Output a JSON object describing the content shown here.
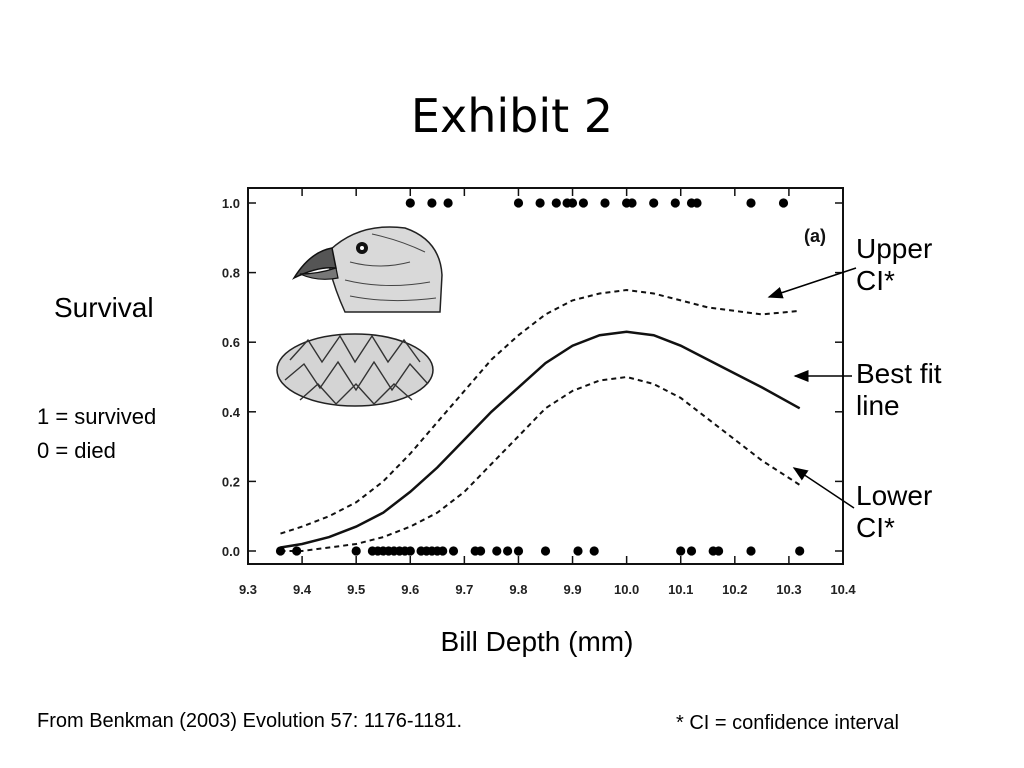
{
  "slide": {
    "title": "Exhibit 2",
    "survival_label": "Survival",
    "coding_survived": "1 = survived",
    "coding_died": "0 = died",
    "upper_ci": "Upper CI*",
    "best_fit": "Best fit line",
    "lower_ci": "Lower CI*",
    "source": "From Benkman (2003) Evolution 57: 1176-1181.",
    "ci_note": "* CI = confidence interval"
  },
  "chart_data": {
    "type": "scatter",
    "panel_label": "(a)",
    "xlabel": "Bill Depth (mm)",
    "ylabel": "",
    "xlim": [
      9.3,
      10.4
    ],
    "ylim": [
      0.0,
      1.0
    ],
    "x_ticks": [
      9.3,
      9.4,
      9.5,
      9.6,
      9.7,
      9.8,
      9.9,
      10.0,
      10.1,
      10.2,
      10.3,
      10.4
    ],
    "y_ticks": [
      0.0,
      0.2,
      0.4,
      0.6,
      0.8,
      1.0
    ],
    "grid": false,
    "series": [
      {
        "kind": "points",
        "x": [
          9.6,
          9.64,
          9.67,
          9.8,
          9.84,
          9.87,
          9.89,
          9.9,
          9.92,
          9.96,
          10.0,
          10.01,
          10.05,
          10.09,
          10.12,
          10.13,
          10.23,
          10.29
        ],
        "y": [
          1,
          1,
          1,
          1,
          1,
          1,
          1,
          1,
          1,
          1,
          1,
          1,
          1,
          1,
          1,
          1,
          1,
          1
        ]
      },
      {
        "kind": "points",
        "x": [
          9.36,
          9.39,
          9.5,
          9.53,
          9.54,
          9.55,
          9.56,
          9.57,
          9.58,
          9.59,
          9.6,
          9.62,
          9.63,
          9.64,
          9.65,
          9.66,
          9.68,
          9.72,
          9.73,
          9.76,
          9.78,
          9.8,
          9.85,
          9.91,
          9.94,
          10.1,
          10.12,
          10.16,
          10.17,
          10.23,
          10.32
        ],
        "y": [
          0,
          0,
          0,
          0,
          0,
          0,
          0,
          0,
          0,
          0,
          0,
          0,
          0,
          0,
          0,
          0,
          0,
          0,
          0,
          0,
          0,
          0,
          0,
          0,
          0,
          0,
          0,
          0,
          0,
          0,
          0
        ]
      },
      {
        "kind": "line",
        "style": "solid",
        "x": [
          9.36,
          9.4,
          9.45,
          9.5,
          9.55,
          9.6,
          9.65,
          9.7,
          9.75,
          9.8,
          9.85,
          9.9,
          9.95,
          10.0,
          10.05,
          10.1,
          10.15,
          10.2,
          10.25,
          10.32
        ],
        "y": [
          0.01,
          0.02,
          0.04,
          0.07,
          0.11,
          0.17,
          0.24,
          0.32,
          0.4,
          0.47,
          0.54,
          0.59,
          0.62,
          0.63,
          0.62,
          0.59,
          0.55,
          0.51,
          0.47,
          0.41
        ]
      },
      {
        "kind": "line",
        "style": "dashed",
        "x": [
          9.36,
          9.4,
          9.45,
          9.5,
          9.55,
          9.6,
          9.65,
          9.7,
          9.75,
          9.8,
          9.85,
          9.9,
          9.95,
          10.0,
          10.05,
          10.1,
          10.15,
          10.2,
          10.25,
          10.32
        ],
        "y": [
          0.05,
          0.07,
          0.1,
          0.14,
          0.2,
          0.28,
          0.37,
          0.46,
          0.55,
          0.62,
          0.68,
          0.72,
          0.74,
          0.75,
          0.74,
          0.72,
          0.7,
          0.69,
          0.68,
          0.69
        ]
      },
      {
        "kind": "line",
        "style": "dashed",
        "x": [
          9.36,
          9.4,
          9.45,
          9.5,
          9.55,
          9.6,
          9.65,
          9.7,
          9.75,
          9.8,
          9.85,
          9.9,
          9.95,
          10.0,
          10.05,
          10.1,
          10.15,
          10.2,
          10.25,
          10.32
        ],
        "y": [
          0.0,
          0.0,
          0.01,
          0.02,
          0.04,
          0.07,
          0.11,
          0.17,
          0.25,
          0.33,
          0.41,
          0.46,
          0.49,
          0.5,
          0.48,
          0.44,
          0.38,
          0.32,
          0.26,
          0.19
        ]
      }
    ]
  }
}
